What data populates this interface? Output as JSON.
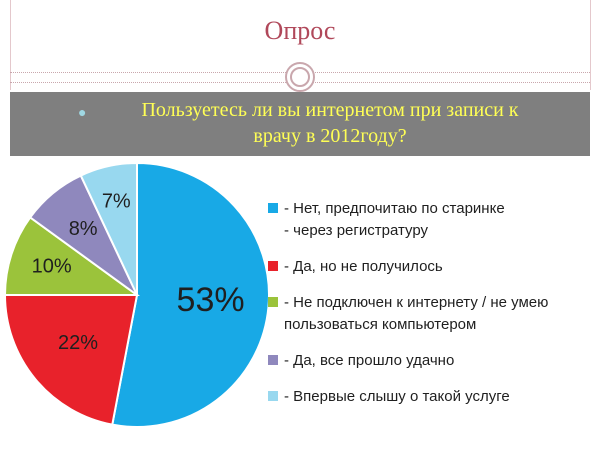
{
  "slide": {
    "title": "Опрос",
    "question_line1": "Пользуетесь ли вы интернетом при записи к",
    "question_line2": "врачу в 2012году?"
  },
  "chart_data": {
    "type": "pie",
    "values": [
      53,
      22,
      10,
      8,
      7
    ],
    "labels": [
      "53%",
      "22%",
      "10%",
      "8%",
      "7%"
    ],
    "colors": [
      "#18a9e6",
      "#e8222b",
      "#9bc33b",
      "#8f88bd",
      "#98d8ef"
    ],
    "legend": [
      "- Нет, предпочитаю по старинке\n - через регистратуру",
      "- Да, но не получилось",
      "- Не подключен к интернету / не умею пользоваться компьютером",
      "- Да, все прошло удачно",
      "- Впервые слышу о такой услуге"
    ],
    "legend_position": "right"
  }
}
